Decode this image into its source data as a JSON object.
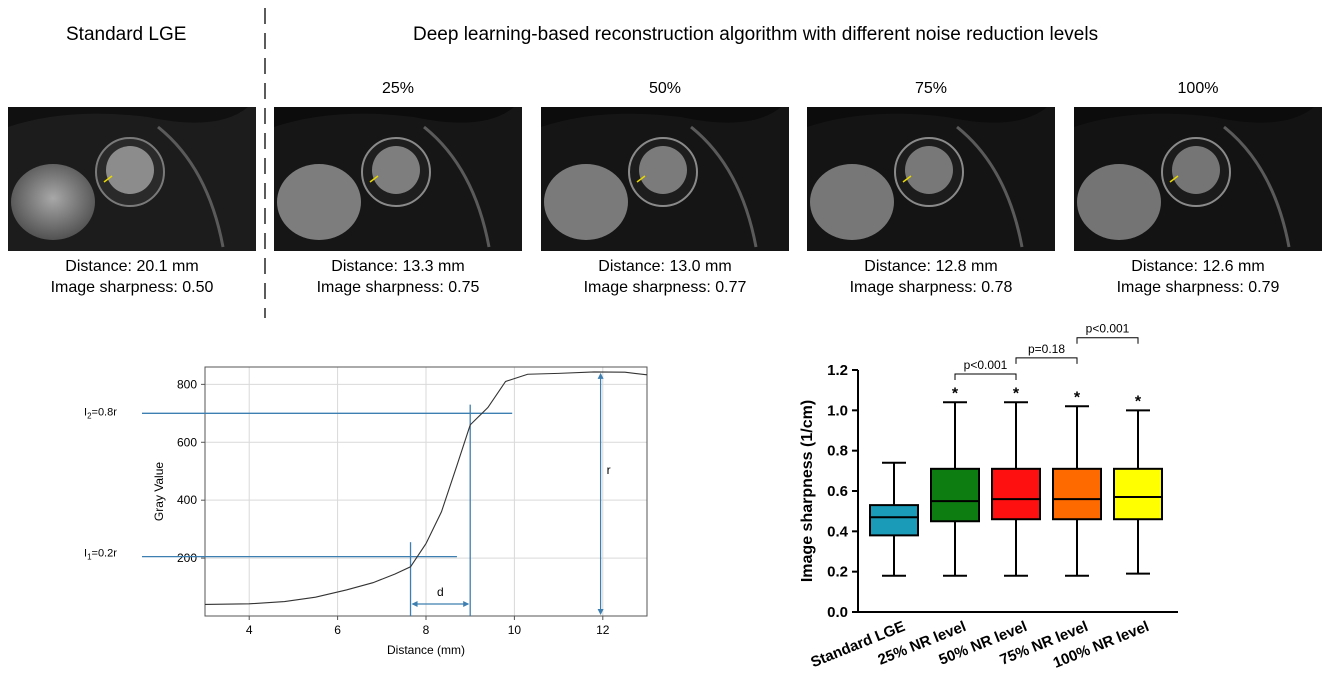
{
  "header": {
    "left_title": "Standard LGE",
    "right_title": "Deep learning-based reconstruction algorithm with different noise reduction levels"
  },
  "panels": [
    {
      "level": "",
      "distance": "Distance: 20.1 mm",
      "sharpness": "Image sharpness: 0.50"
    },
    {
      "level": "25%",
      "distance": "Distance: 13.3 mm",
      "sharpness": "Image sharpness: 0.75"
    },
    {
      "level": "50%",
      "distance": "Distance: 13.0 mm",
      "sharpness": "Image sharpness: 0.77"
    },
    {
      "level": "75%",
      "distance": "Distance: 12.8 mm",
      "sharpness": "Image sharpness: 0.78"
    },
    {
      "level": "100%",
      "distance": "Distance: 12.6 mm",
      "sharpness": "Image sharpness: 0.79"
    }
  ],
  "chart_data": [
    {
      "type": "line",
      "xlabel": "Distance (mm)",
      "ylabel": "Gray Value",
      "xlim": [
        3,
        13
      ],
      "ylim": [
        0,
        860
      ],
      "xticks": [
        4,
        6,
        8,
        10,
        12
      ],
      "yticks": [
        200,
        400,
        600,
        800
      ],
      "grid": true,
      "x": [
        3.0,
        4.0,
        4.8,
        5.5,
        6.2,
        6.8,
        7.3,
        7.65,
        8.0,
        8.35,
        8.7,
        9.0,
        9.4,
        9.8,
        10.3,
        11.0,
        11.8,
        12.5,
        13.0
      ],
      "y": [
        40,
        42,
        50,
        65,
        90,
        115,
        145,
        170,
        250,
        360,
        520,
        660,
        720,
        810,
        835,
        838,
        843,
        842,
        833
      ],
      "annotations": {
        "i2_label": "I",
        "i2_sub": "2",
        "i2_rest": "=0.8r",
        "i2_value": 700,
        "i1_label": "I",
        "i1_sub": "1",
        "i1_rest": "=0.2r",
        "i1_value": 205,
        "d_label": "d",
        "d_from": 7.65,
        "d_to": 9.0,
        "r_label": "r",
        "r_x": 11.95,
        "r_top": 843
      }
    },
    {
      "type": "box",
      "ylabel": "Image sharpness  (1/cm)",
      "ylim": [
        0.0,
        1.2
      ],
      "yticks": [
        "0.0",
        "0.2",
        "0.4",
        "0.6",
        "0.8",
        "1.0",
        "1.2"
      ],
      "categories": [
        "Standard LGE",
        "25% NR level",
        "50% NR level",
        "75% NR level",
        "100% NR level"
      ],
      "boxes": [
        {
          "min": 0.18,
          "q1": 0.38,
          "median": 0.47,
          "q3": 0.53,
          "max": 0.74,
          "color": "#1a9bb8",
          "star": ""
        },
        {
          "min": 0.18,
          "q1": 0.45,
          "median": 0.55,
          "q3": 0.71,
          "max": 1.04,
          "color": "#0d7d12",
          "star": "*"
        },
        {
          "min": 0.18,
          "q1": 0.46,
          "median": 0.56,
          "q3": 0.71,
          "max": 1.04,
          "color": "#ff1010",
          "star": "*"
        },
        {
          "min": 0.18,
          "q1": 0.46,
          "median": 0.56,
          "q3": 0.71,
          "max": 1.02,
          "color": "#ff6a00",
          "star": "*"
        },
        {
          "min": 0.19,
          "q1": 0.46,
          "median": 0.57,
          "q3": 0.71,
          "max": 1.0,
          "color": "#ffff00",
          "star": "*"
        }
      ],
      "comparisons": [
        {
          "from": 1,
          "to": 2,
          "label": "p<0.001",
          "level": 1.18
        },
        {
          "from": 2,
          "to": 3,
          "label": "p=0.18",
          "level": 1.26
        },
        {
          "from": 3,
          "to": 4,
          "label": "p<0.001",
          "level": 1.36
        }
      ]
    }
  ]
}
